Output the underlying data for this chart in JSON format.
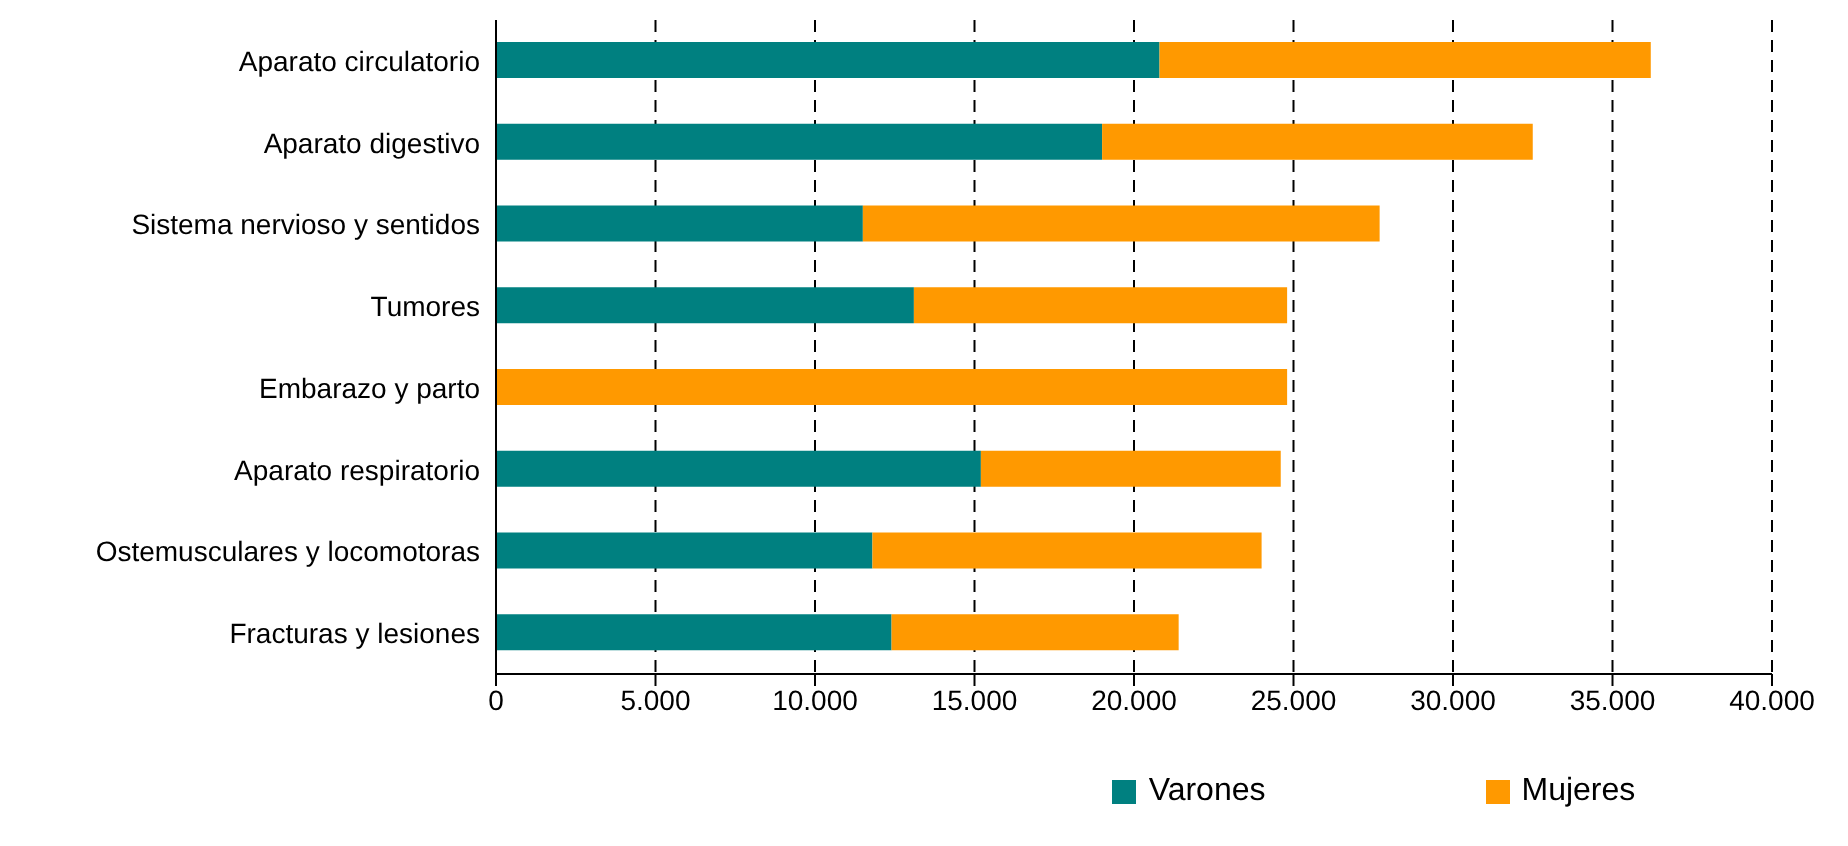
{
  "chart_data": {
    "type": "bar",
    "orientation": "horizontal",
    "stacked": true,
    "categories": [
      "Aparato circulatorio",
      "Aparato digestivo",
      "Sistema nervioso y  sentidos",
      "Tumores",
      "Embarazo y parto",
      "Aparato respiratorio",
      "Ostemusculares y locomotoras",
      "Fracturas y lesiones"
    ],
    "series": [
      {
        "name": "Varones",
        "color": "#008080",
        "values": [
          20800,
          19000,
          11500,
          13100,
          0,
          15200,
          11800,
          12400
        ]
      },
      {
        "name": "Mujeres",
        "color": "#ff9900",
        "values": [
          15400,
          13500,
          16200,
          11700,
          24800,
          9400,
          12200,
          9000
        ]
      }
    ],
    "xlim": [
      0,
      40000
    ],
    "xticks": [
      {
        "value": 0,
        "label": "0"
      },
      {
        "value": 5000,
        "label": "5.000"
      },
      {
        "value": 10000,
        "label": "10.000"
      },
      {
        "value": 15000,
        "label": "15.000"
      },
      {
        "value": 20000,
        "label": "20.000"
      },
      {
        "value": 25000,
        "label": "25.000"
      },
      {
        "value": 30000,
        "label": "30.000"
      },
      {
        "value": 35000,
        "label": "35.000"
      },
      {
        "value": 40000,
        "label": "40.000"
      }
    ],
    "grid": "x",
    "legend": "bottom"
  }
}
